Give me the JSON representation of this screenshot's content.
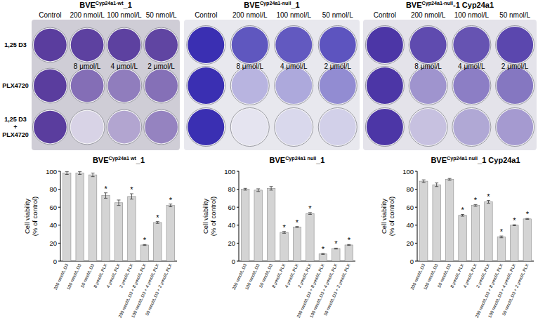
{
  "plates": [
    {
      "title": {
        "base": "BVE",
        "sup": "Cyp24a1-wt",
        "suffix": "_1"
      },
      "column_labels": [
        "Control",
        "200 nmol/L",
        "100 nmol/L",
        "50 nmol/L"
      ],
      "plx_labels": [
        "8 μmol/L",
        "4 μmol/L",
        "2 μmol/L"
      ],
      "color": "#5a3d9e"
    },
    {
      "title": {
        "base": "BVE",
        "sup": "Cyp24a1-null",
        "suffix": "_1"
      },
      "column_labels": [
        "Control",
        "200 nmol/L",
        "100 nmol/L",
        "50 nmol/L"
      ],
      "plx_labels": [
        "8 μmol/L",
        "4 μmol/L",
        "2 μmol/L"
      ],
      "color": "#3a2fb2"
    },
    {
      "title": {
        "base": "BVE",
        "sup": "Cyp24a1-null",
        "suffix": "-1 Cyp24a1"
      },
      "column_labels": [
        "Control",
        "200 nmol/L",
        "100 nmol/L",
        "50 nmol/L"
      ],
      "plx_labels": [
        "8 μmol/L",
        "4 μmol/L",
        "2 μmol/L"
      ],
      "color": "#4c36a6"
    }
  ],
  "row_labels": [
    [
      "1,25 D3"
    ],
    [
      "PLX4720"
    ],
    [
      "1,25 D3",
      "+",
      "PLX4720"
    ]
  ],
  "chart_data": [
    {
      "type": "bar",
      "title": {
        "base": "BVE",
        "sup": "Cyp24a1 wt",
        "suffix": "_1"
      },
      "ylabel": [
        "Cell viability",
        "(% of control)"
      ],
      "categories": [
        "200 nmol/L D3",
        "100 nmol/L D3",
        "50 nmol/L D3",
        "8 μmol/L PLX",
        "4 μmol/L PLX",
        "2 μmol/L PLX",
        "200 nmol/L D3 + 8 μmol/L PLX",
        "100 nmol/L D3 + 4 μmol/L PLX",
        "50 nmol/L D3 + 2 μmol/L PLX"
      ],
      "values": [
        98,
        98,
        96,
        73,
        65,
        72,
        18,
        43,
        62
      ],
      "errors": [
        1.5,
        1.5,
        2,
        3,
        3,
        3,
        0.5,
        1,
        1.5
      ],
      "significance": [
        null,
        null,
        null,
        "*",
        null,
        "*",
        "*",
        "*",
        "*"
      ],
      "color": "#d4d4d4",
      "ylim": [
        0,
        100
      ],
      "yticks": [
        0,
        20,
        40,
        60,
        80,
        100
      ]
    },
    {
      "type": "bar",
      "title": {
        "base": "BVE",
        "sup": "Cyp24a1 null",
        "suffix": "_1"
      },
      "ylabel": [
        "Cell viability",
        "(% of control)"
      ],
      "categories": [
        "200 nmol/L D3",
        "100 nmol/L D3",
        "50 nmol/L D3",
        "8 μmol/L PLX",
        "4 μmol/L PLX",
        "2 μmol/L PLX",
        "200 nmol/L D3 + 8 μmol/L PLX",
        "100 nmol/L D3 + 4 μmol/L PLX",
        "50 nmol/L D3 + 2 μmol/L PLX"
      ],
      "values": [
        80,
        79,
        81,
        32,
        38,
        53,
        8,
        14,
        18
      ],
      "errors": [
        1,
        1.5,
        2,
        1,
        0.5,
        1,
        0.5,
        0.5,
        0.5
      ],
      "significance": [
        null,
        null,
        null,
        "*",
        "*",
        "*",
        "*",
        "*",
        "*"
      ],
      "color": "#d4d4d4",
      "ylim": [
        0,
        100
      ],
      "yticks": [
        0,
        20,
        40,
        60,
        80,
        100
      ]
    },
    {
      "type": "bar",
      "title": {
        "base": "BVE",
        "sup": "Cyp24a1 null",
        "suffix": "_1 Cyp24a1"
      },
      "ylabel": [
        "Cell viability",
        "(% of control)"
      ],
      "categories": [
        "200 nmol/L D3",
        "100 nmol/L D3",
        "50 nmol/L D3",
        "8 μmol/L PLX",
        "4 μmol/L PLX",
        "2 μmol/L PLX",
        "200 nmol/L D3 + 8 μmol/L PLX",
        "100 nmol/L D3 + 4 μmol/L PLX",
        "50 nmol/L D3 + 2 μmol/L PLX"
      ],
      "values": [
        89,
        85,
        91,
        51,
        62,
        66,
        27,
        40,
        47
      ],
      "errors": [
        1.5,
        2,
        1,
        1,
        1,
        1.5,
        1,
        0.5,
        0.5
      ],
      "significance": [
        null,
        null,
        null,
        "*",
        "*",
        "*",
        "*",
        "*",
        "*"
      ],
      "color": "#d4d4d4",
      "ylim": [
        0,
        100
      ],
      "yticks": [
        0,
        20,
        40,
        60,
        80,
        100
      ]
    }
  ]
}
